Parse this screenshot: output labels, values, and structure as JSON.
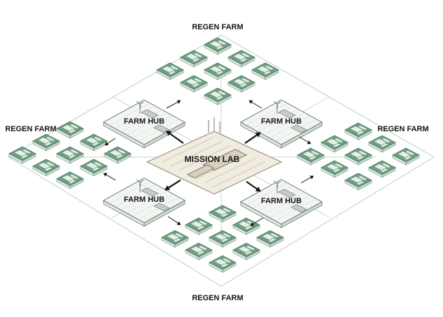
{
  "labels": {
    "mission_lab": "MISSION LAB",
    "farm_hub": "FARM HUB",
    "regen_farm": "REGEN FARM"
  },
  "colors": {
    "farm_green": "#6f9e82",
    "farm_green_dark": "#3d6a50",
    "hub_fill": "#f3f5f3",
    "lab_fill": "#f1ece0",
    "ground_line": "#b9d2c4",
    "ink": "#141414"
  }
}
